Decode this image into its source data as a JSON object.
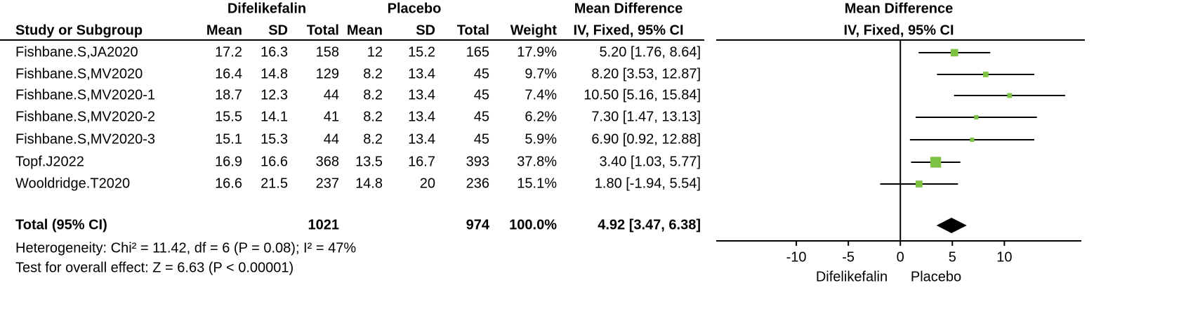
{
  "chart_data": {
    "type": "forest",
    "column_groups": [
      "Difelikefalin",
      "Placebo",
      "Mean Difference",
      "Mean Difference"
    ],
    "columns": [
      "Study or Subgroup",
      "Mean",
      "SD",
      "Total",
      "Mean",
      "SD",
      "Total",
      "Weight",
      "IV, Fixed, 95% CI",
      "IV, Fixed, 95% CI"
    ],
    "studies": [
      {
        "name": "Fishbane.S,JA2020",
        "exp_mean": 17.2,
        "exp_sd": 16.3,
        "exp_n": 158,
        "ctl_mean": 12,
        "ctl_sd": 15.2,
        "ctl_n": 165,
        "weight": 17.9,
        "weight_label": "17.9%",
        "md": 5.2,
        "ci_low": 1.76,
        "ci_high": 8.64,
        "ci_label": "5.20 [1.76, 8.64]"
      },
      {
        "name": "Fishbane.S,MV2020",
        "exp_mean": 16.4,
        "exp_sd": 14.8,
        "exp_n": 129,
        "ctl_mean": 8.2,
        "ctl_sd": 13.4,
        "ctl_n": 45,
        "weight": 9.7,
        "weight_label": "9.7%",
        "md": 8.2,
        "ci_low": 3.53,
        "ci_high": 12.87,
        "ci_label": "8.20 [3.53, 12.87]"
      },
      {
        "name": "Fishbane.S,MV2020-1",
        "exp_mean": 18.7,
        "exp_sd": 12.3,
        "exp_n": 44,
        "ctl_mean": 8.2,
        "ctl_sd": 13.4,
        "ctl_n": 45,
        "weight": 7.4,
        "weight_label": "7.4%",
        "md": 10.5,
        "ci_low": 5.16,
        "ci_high": 15.84,
        "ci_label": "10.50 [5.16, 15.84]"
      },
      {
        "name": "Fishbane.S,MV2020-2",
        "exp_mean": 15.5,
        "exp_sd": 14.1,
        "exp_n": 41,
        "ctl_mean": 8.2,
        "ctl_sd": 13.4,
        "ctl_n": 45,
        "weight": 6.2,
        "weight_label": "6.2%",
        "md": 7.3,
        "ci_low": 1.47,
        "ci_high": 13.13,
        "ci_label": "7.30 [1.47, 13.13]"
      },
      {
        "name": "Fishbane.S,MV2020-3",
        "exp_mean": 15.1,
        "exp_sd": 15.3,
        "exp_n": 44,
        "ctl_mean": 8.2,
        "ctl_sd": 13.4,
        "ctl_n": 45,
        "weight": 5.9,
        "weight_label": "5.9%",
        "md": 6.9,
        "ci_low": 0.92,
        "ci_high": 12.88,
        "ci_label": "6.90 [0.92, 12.88]"
      },
      {
        "name": "Topf.J2022",
        "exp_mean": 16.9,
        "exp_sd": 16.6,
        "exp_n": 368,
        "ctl_mean": 13.5,
        "ctl_sd": 16.7,
        "ctl_n": 393,
        "weight": 37.8,
        "weight_label": "37.8%",
        "md": 3.4,
        "ci_low": 1.03,
        "ci_high": 5.77,
        "ci_label": "3.40 [1.03, 5.77]"
      },
      {
        "name": "Wooldridge.T2020",
        "exp_mean": 16.6,
        "exp_sd": 21.5,
        "exp_n": 237,
        "ctl_mean": 14.8,
        "ctl_sd": 20,
        "ctl_n": 236,
        "weight": 15.1,
        "weight_label": "15.1%",
        "md": 1.8,
        "ci_low": -1.94,
        "ci_high": 5.54,
        "ci_label": "1.80 [-1.94, 5.54]"
      }
    ],
    "total": {
      "name": "Total (95% CI)",
      "exp_n": 1021,
      "ctl_n": 974,
      "weight": 100.0,
      "weight_label": "100.0%",
      "md": 4.92,
      "ci_low": 3.47,
      "ci_high": 6.38,
      "ci_label": "4.92 [3.47, 6.38]"
    },
    "heterogeneity": "Heterogeneity: Chi² = 11.42, df = 6 (P = 0.08); I² = 47%",
    "overall_effect": "Test for overall effect: Z = 6.63 (P < 0.00001)",
    "xlim": [
      -17.7,
      17.4
    ],
    "xticks": [
      -10,
      -5,
      0,
      5,
      10
    ],
    "x_side_labels": [
      "Difelikefalin",
      "Placebo"
    ],
    "color": "#7dc242",
    "diamond_color": "#000000"
  }
}
